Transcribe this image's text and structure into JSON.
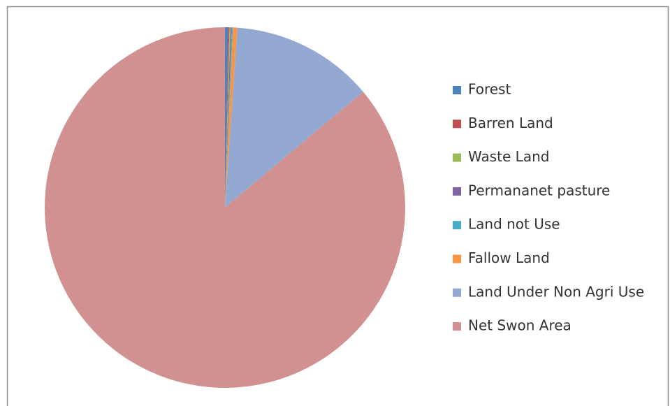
{
  "chart_data": {
    "type": "pie",
    "categories": [
      "Forest",
      "Barren Land",
      "Waste Land",
      "Permananet pasture",
      "Land not Use",
      "Fallow Land",
      "Land Under Non Agri Use",
      "Net Swon Area"
    ],
    "values": [
      0.3,
      0.1,
      0.1,
      0.1,
      0.1,
      0.4,
      12.8,
      86.1
    ],
    "colors": [
      "#4f81bd",
      "#c0504d",
      "#9bbb59",
      "#8064a2",
      "#4bacc6",
      "#f79646",
      "#94a9d1",
      "#d09190"
    ],
    "legend": "right"
  }
}
